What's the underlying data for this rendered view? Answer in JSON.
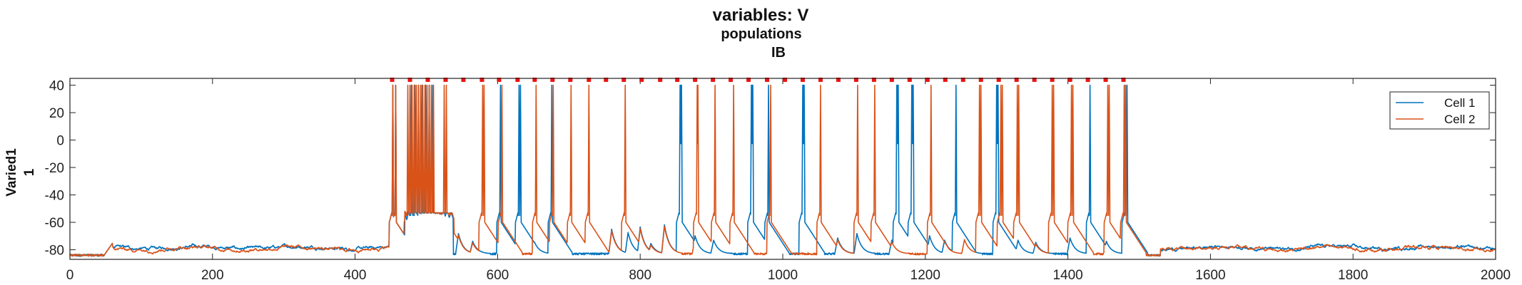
{
  "chart_data": {
    "type": "line",
    "title": "variables: V",
    "subtitle_1": "populations",
    "subtitle_2": "IB",
    "ylabel_1": "Varied1",
    "ylabel_2": "1",
    "xlim": [
      0,
      2000
    ],
    "ylim": [
      -87,
      45
    ],
    "xticks": [
      0,
      200,
      400,
      600,
      800,
      1000,
      1200,
      1400,
      1600,
      1800,
      2000
    ],
    "yticks": [
      40,
      20,
      0,
      -20,
      -40,
      -60,
      -80
    ],
    "legend_position": "right",
    "baseline_mV": -79,
    "active_window": [
      450,
      1480
    ],
    "series": [
      {
        "name": "Cell 1",
        "color": "#0072BD",
        "spikes": [
          452,
          456,
          478,
          483,
          488,
          493,
          498,
          503,
          508,
          603,
          629,
          631,
          675,
          855,
          856,
          857,
          955,
          956,
          957,
          979,
          1027,
          1028,
          1029,
          1159,
          1160,
          1161,
          1180,
          1181,
          1182,
          1242,
          1299,
          1300,
          1301,
          1430,
          1480,
          1482
        ]
      },
      {
        "name": "Cell 2",
        "color": "#D95319",
        "spikes": [
          452,
          456,
          473,
          476,
          479,
          482,
          485,
          488,
          491,
          494,
          497,
          500,
          503,
          506,
          509,
          524,
          527,
          578,
          580,
          605,
          653,
          677,
          702,
          727,
          778,
          879,
          880,
          904,
          930,
          982,
          1052,
          1104,
          1128,
          1207,
          1275,
          1277,
          1305,
          1307,
          1328,
          1330,
          1377,
          1379,
          1404,
          1406,
          1455,
          1457,
          1478,
          1480
        ]
      }
    ],
    "subthreshold_bumps": [
      {
        "t": 545,
        "v": -66
      },
      {
        "t": 565,
        "v": -73
      },
      {
        "t": 652,
        "v": -74
      },
      {
        "t": 760,
        "v": -62
      },
      {
        "t": 783,
        "v": -65
      },
      {
        "t": 800,
        "v": -60
      },
      {
        "t": 815,
        "v": -75
      },
      {
        "t": 834,
        "v": -58
      },
      {
        "t": 877,
        "v": -68
      },
      {
        "t": 903,
        "v": -72
      },
      {
        "t": 1077,
        "v": -70
      },
      {
        "t": 1104,
        "v": -66
      },
      {
        "t": 1153,
        "v": -72
      },
      {
        "t": 1206,
        "v": -68
      },
      {
        "t": 1227,
        "v": -72
      },
      {
        "t": 1255,
        "v": -70
      },
      {
        "t": 1330,
        "v": -72
      },
      {
        "t": 1355,
        "v": -74
      },
      {
        "t": 1403,
        "v": -70
      },
      {
        "t": 1454,
        "v": -73
      }
    ],
    "event_markers": {
      "color": "#EE1111",
      "v": 44,
      "times": [
        452,
        477,
        502,
        527,
        552,
        578,
        602,
        628,
        652,
        677,
        702,
        728,
        752,
        777,
        802,
        828,
        852,
        877,
        902,
        927,
        952,
        978,
        1003,
        1028,
        1053,
        1078,
        1103,
        1128,
        1153,
        1178,
        1203,
        1228,
        1253,
        1278,
        1303,
        1328,
        1353,
        1378,
        1403,
        1428,
        1453,
        1478
      ]
    }
  }
}
